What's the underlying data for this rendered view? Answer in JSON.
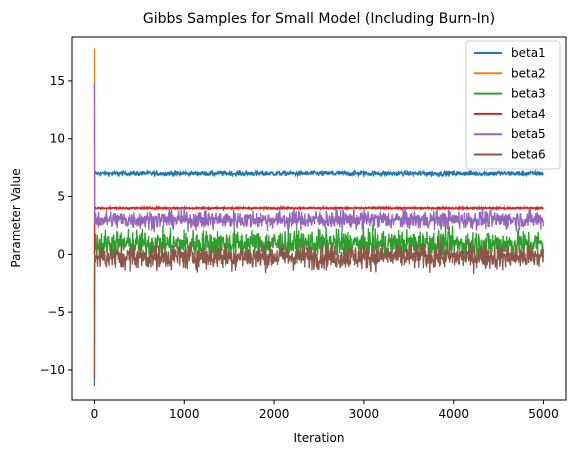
{
  "chart_data": {
    "type": "line",
    "title": "Gibbs Samples for Small Model (Including Burn-In)",
    "xlabel": "Iteration",
    "ylabel": "Parameter Value",
    "xlim": [
      -250,
      5250
    ],
    "ylim": [
      -12.6,
      18.8
    ],
    "x_ticks": [
      0,
      1000,
      2000,
      3000,
      4000,
      5000
    ],
    "y_ticks": [
      -10,
      -5,
      0,
      5,
      10,
      15
    ],
    "x_tick_labels": [
      "0",
      "1000",
      "2000",
      "3000",
      "4000",
      "5000"
    ],
    "y_tick_labels": [
      "−10",
      "−5",
      "0",
      "5",
      "10",
      "15"
    ],
    "grid": false,
    "legend_position": "top-right",
    "iterations": 5000,
    "series": [
      {
        "name": "beta1",
        "color": "#1f77b4",
        "start_value": -11.4,
        "stationary_mean": 7.0,
        "spread": 0.22
      },
      {
        "name": "beta2",
        "color": "#ff7f0e",
        "start_value": 17.8,
        "stationary_mean": 4.0,
        "spread": 0.04
      },
      {
        "name": "beta3",
        "color": "#2ca02c",
        "start_value": -4.5,
        "stationary_mean": 0.9,
        "spread": 1.2
      },
      {
        "name": "beta4",
        "color": "#d62728",
        "start_value": 0.0,
        "stationary_mean": 4.0,
        "spread": 0.08
      },
      {
        "name": "beta5",
        "color": "#9467bd",
        "start_value": 14.8,
        "stationary_mean": 3.0,
        "spread": 0.8
      },
      {
        "name": "beta6",
        "color": "#8c564b",
        "start_value": -10.8,
        "stationary_mean": -0.2,
        "spread": 1.1
      }
    ]
  }
}
